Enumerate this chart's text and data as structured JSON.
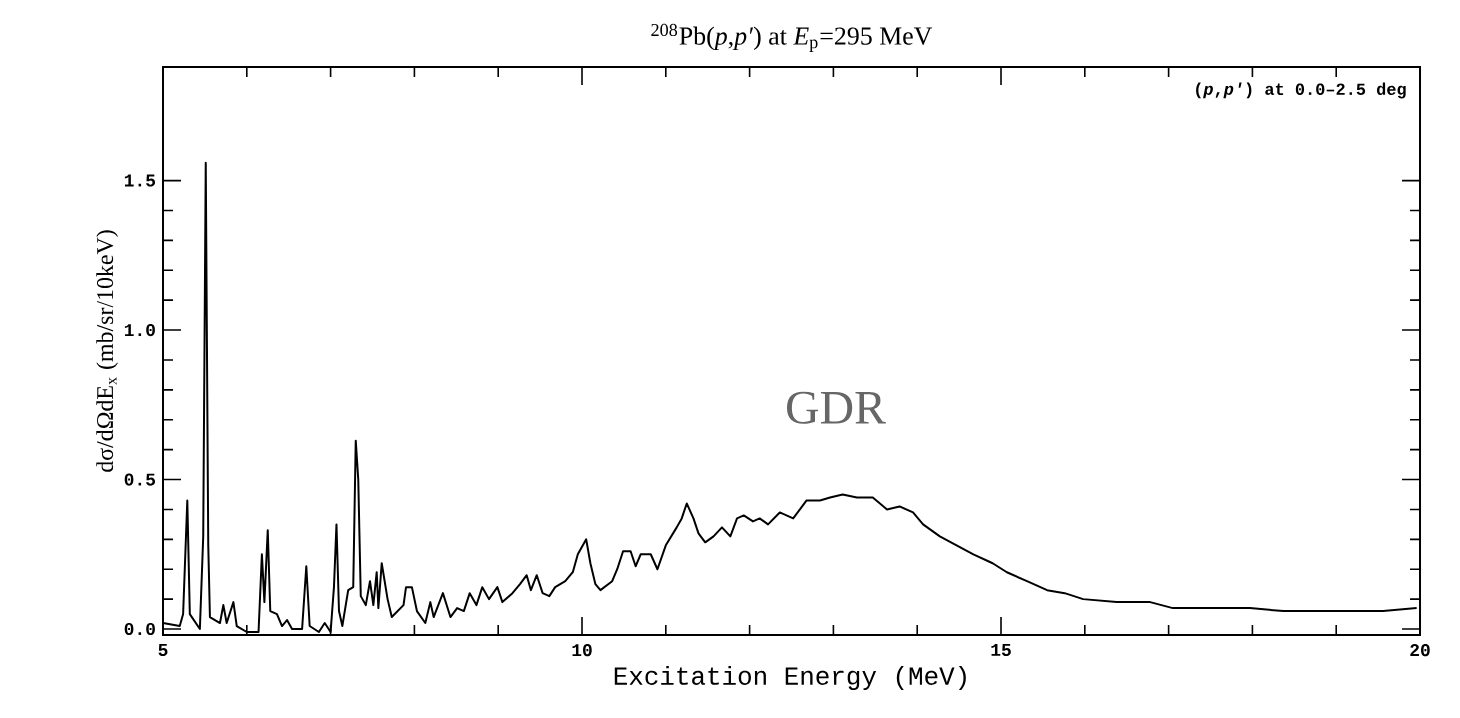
{
  "chart_data": {
    "type": "line",
    "title": "$^{208}$Pb(*p*,*p′*) at *E*$_{p}$=295 MeV",
    "xlabel": "Excitation Energy (MeV)",
    "ylabel": "dσ/dΩdE$_{x}$ (mb/sr/10keV)",
    "annotations": [
      "(*p*,*p′*) at 0.0–2.5 deg",
      "GDR"
    ],
    "xlim": [
      5,
      20
    ],
    "ylim": [
      -0.02,
      1.88
    ],
    "xticks": [
      5,
      10,
      15,
      20
    ],
    "yticks": [
      {
        "value": 0,
        "label": "0.0"
      },
      {
        "value": 0.5,
        "label": "0.5"
      },
      {
        "value": 1.0,
        "label": "1.0"
      },
      {
        "value": 1.5,
        "label": "1.5"
      }
    ],
    "series": [
      {
        "color": "#000000",
        "x": [
          5.0,
          5.2,
          5.24,
          5.29,
          5.32,
          5.44,
          5.48,
          5.51,
          5.54,
          5.56,
          5.68,
          5.72,
          5.76,
          5.84,
          5.88,
          6.0,
          6.14,
          6.18,
          6.21,
          6.25,
          6.28,
          6.36,
          6.42,
          6.48,
          6.54,
          6.66,
          6.71,
          6.75,
          6.86,
          6.93,
          7.0,
          7.04,
          7.07,
          7.1,
          7.14,
          7.21,
          7.27,
          7.3,
          7.33,
          7.36,
          7.42,
          7.47,
          7.51,
          7.55,
          7.57,
          7.61,
          7.68,
          7.73,
          7.87,
          7.9,
          7.97,
          8.03,
          8.13,
          8.19,
          8.23,
          8.34,
          8.43,
          8.51,
          8.59,
          8.66,
          8.74,
          8.81,
          8.89,
          8.99,
          9.05,
          9.17,
          9.26,
          9.34,
          9.39,
          9.46,
          9.53,
          9.61,
          9.68,
          9.8,
          9.89,
          9.95,
          10.05,
          10.1,
          10.16,
          10.22,
          10.36,
          10.42,
          10.49,
          10.58,
          10.64,
          10.7,
          10.82,
          10.9,
          11.0,
          11.13,
          11.19,
          11.25,
          11.33,
          11.39,
          11.47,
          11.57,
          11.67,
          11.77,
          11.85,
          11.93,
          12.04,
          12.12,
          12.22,
          12.36,
          12.52,
          12.68,
          12.84,
          12.96,
          13.11,
          13.28,
          13.47,
          13.64,
          13.79,
          13.95,
          14.07,
          14.27,
          14.47,
          14.67,
          14.9,
          15.07,
          15.31,
          15.55,
          15.76,
          15.98,
          16.38,
          16.78,
          17.05,
          17.58,
          17.97,
          18.37,
          18.77,
          19.16,
          19.56,
          19.96
        ],
        "values": [
          0.02,
          0.01,
          0.05,
          0.43,
          0.05,
          0.0,
          0.31,
          1.56,
          0.28,
          0.04,
          0.02,
          0.08,
          0.02,
          0.09,
          0.01,
          -0.01,
          -0.01,
          0.25,
          0.09,
          0.33,
          0.06,
          0.05,
          0.01,
          0.03,
          0.0,
          0.0,
          0.21,
          0.01,
          -0.01,
          0.02,
          -0.01,
          0.14,
          0.35,
          0.06,
          0.01,
          0.13,
          0.14,
          0.63,
          0.5,
          0.11,
          0.08,
          0.16,
          0.08,
          0.19,
          0.07,
          0.22,
          0.1,
          0.04,
          0.08,
          0.14,
          0.14,
          0.06,
          0.02,
          0.09,
          0.04,
          0.12,
          0.04,
          0.07,
          0.06,
          0.12,
          0.08,
          0.14,
          0.1,
          0.14,
          0.09,
          0.12,
          0.15,
          0.18,
          0.13,
          0.18,
          0.12,
          0.11,
          0.14,
          0.16,
          0.19,
          0.25,
          0.3,
          0.22,
          0.15,
          0.13,
          0.16,
          0.2,
          0.26,
          0.26,
          0.21,
          0.25,
          0.25,
          0.2,
          0.28,
          0.34,
          0.37,
          0.42,
          0.37,
          0.32,
          0.29,
          0.31,
          0.34,
          0.31,
          0.37,
          0.38,
          0.36,
          0.37,
          0.35,
          0.39,
          0.37,
          0.43,
          0.43,
          0.44,
          0.45,
          0.44,
          0.44,
          0.4,
          0.41,
          0.39,
          0.35,
          0.31,
          0.28,
          0.25,
          0.22,
          0.19,
          0.16,
          0.13,
          0.12,
          0.1,
          0.09,
          0.09,
          0.07,
          0.07,
          0.07,
          0.06,
          0.06,
          0.06,
          0.06,
          0.07
        ]
      }
    ]
  }
}
